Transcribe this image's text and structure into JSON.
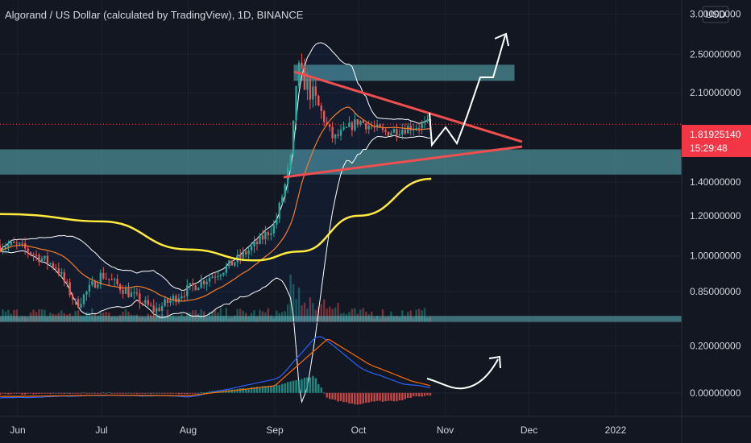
{
  "header": {
    "title": "Algorand / US Dollar (calculated by TradingView), 1D, BINANCE",
    "currency": "USD"
  },
  "price_badge": {
    "price": "1.81925140",
    "countdown": "15:29:48",
    "color": "#f23645"
  },
  "colors": {
    "background": "#131722",
    "grid": "#1e222d",
    "zone_fill": "#5fb6be",
    "trendline": "#f04f4f",
    "ma_long": "#ffeb3b",
    "ma_short": "#f57c28",
    "bollinger": "#ffffff",
    "candle_up": "#26a69a",
    "candle_down": "#ef5350",
    "macd_line": "#2962ff",
    "signal_line": "#ff6d00",
    "projection": "#ffffff"
  },
  "chart_data": [
    {
      "type": "candlestick",
      "title": "Algorand / US Dollar (calculated by TradingView), 1D, BINANCE",
      "x_ticks": [
        "Jun",
        "Jul",
        "Aug",
        "Sep",
        "Oct",
        "Nov",
        "Dec",
        "2022"
      ],
      "y_ticks": [
        "3.00000000",
        "2.50000000",
        "2.10000000",
        "1.40000000",
        "1.20000000",
        "1.00000000",
        "0.85000000"
      ],
      "y_scale": "log",
      "ylim": [
        0.74,
        3.2
      ],
      "current_price": 1.8192514,
      "series_approx": {
        "close": [
          {
            "x": "2021-06-01",
            "y": 1.05
          },
          {
            "x": "2021-06-15",
            "y": 0.95
          },
          {
            "x": "2021-06-22",
            "y": 0.8
          },
          {
            "x": "2021-07-01",
            "y": 0.92
          },
          {
            "x": "2021-07-20",
            "y": 0.78
          },
          {
            "x": "2021-08-01",
            "y": 0.86
          },
          {
            "x": "2021-08-15",
            "y": 0.95
          },
          {
            "x": "2021-08-25",
            "y": 1.05
          },
          {
            "x": "2021-09-01",
            "y": 1.15
          },
          {
            "x": "2021-09-07",
            "y": 1.55
          },
          {
            "x": "2021-09-09",
            "y": 2.35
          },
          {
            "x": "2021-09-15",
            "y": 2.05
          },
          {
            "x": "2021-09-22",
            "y": 1.7
          },
          {
            "x": "2021-10-01",
            "y": 1.85
          },
          {
            "x": "2021-10-10",
            "y": 1.75
          },
          {
            "x": "2021-10-20",
            "y": 1.8
          },
          {
            "x": "2021-10-27",
            "y": 1.82
          }
        ],
        "ma_long": [
          {
            "x": "2021-06-01",
            "y": 1.21
          },
          {
            "x": "2021-07-01",
            "y": 1.17
          },
          {
            "x": "2021-08-01",
            "y": 1.03
          },
          {
            "x": "2021-08-25",
            "y": 0.98
          },
          {
            "x": "2021-09-10",
            "y": 1.02
          },
          {
            "x": "2021-10-01",
            "y": 1.2
          },
          {
            "x": "2021-10-27",
            "y": 1.42
          }
        ]
      },
      "zones": [
        {
          "name": "upper",
          "from": 2.22,
          "to": 2.38
        },
        {
          "name": "middle",
          "from": 1.45,
          "to": 1.62
        },
        {
          "name": "lower",
          "from": 0.74,
          "to": 0.76
        }
      ]
    },
    {
      "type": "line",
      "y_ticks": [
        "0.20000000",
        "0.00000000"
      ],
      "ylim": [
        -0.1,
        0.3
      ],
      "series_approx": {
        "macd": [
          {
            "x": "2021-06-01",
            "y": -0.02
          },
          {
            "x": "2021-07-01",
            "y": -0.01
          },
          {
            "x": "2021-08-01",
            "y": -0.015
          },
          {
            "x": "2021-09-01",
            "y": 0.06
          },
          {
            "x": "2021-09-15",
            "y": 0.25
          },
          {
            "x": "2021-10-01",
            "y": 0.1
          },
          {
            "x": "2021-10-15",
            "y": 0.04
          },
          {
            "x": "2021-10-27",
            "y": 0.02
          }
        ],
        "signal": [
          {
            "x": "2021-06-01",
            "y": -0.015
          },
          {
            "x": "2021-07-01",
            "y": -0.01
          },
          {
            "x": "2021-08-01",
            "y": -0.012
          },
          {
            "x": "2021-09-01",
            "y": 0.03
          },
          {
            "x": "2021-09-20",
            "y": 0.23
          },
          {
            "x": "2021-10-05",
            "y": 0.12
          },
          {
            "x": "2021-10-20",
            "y": 0.05
          },
          {
            "x": "2021-10-27",
            "y": 0.03
          }
        ]
      }
    }
  ]
}
